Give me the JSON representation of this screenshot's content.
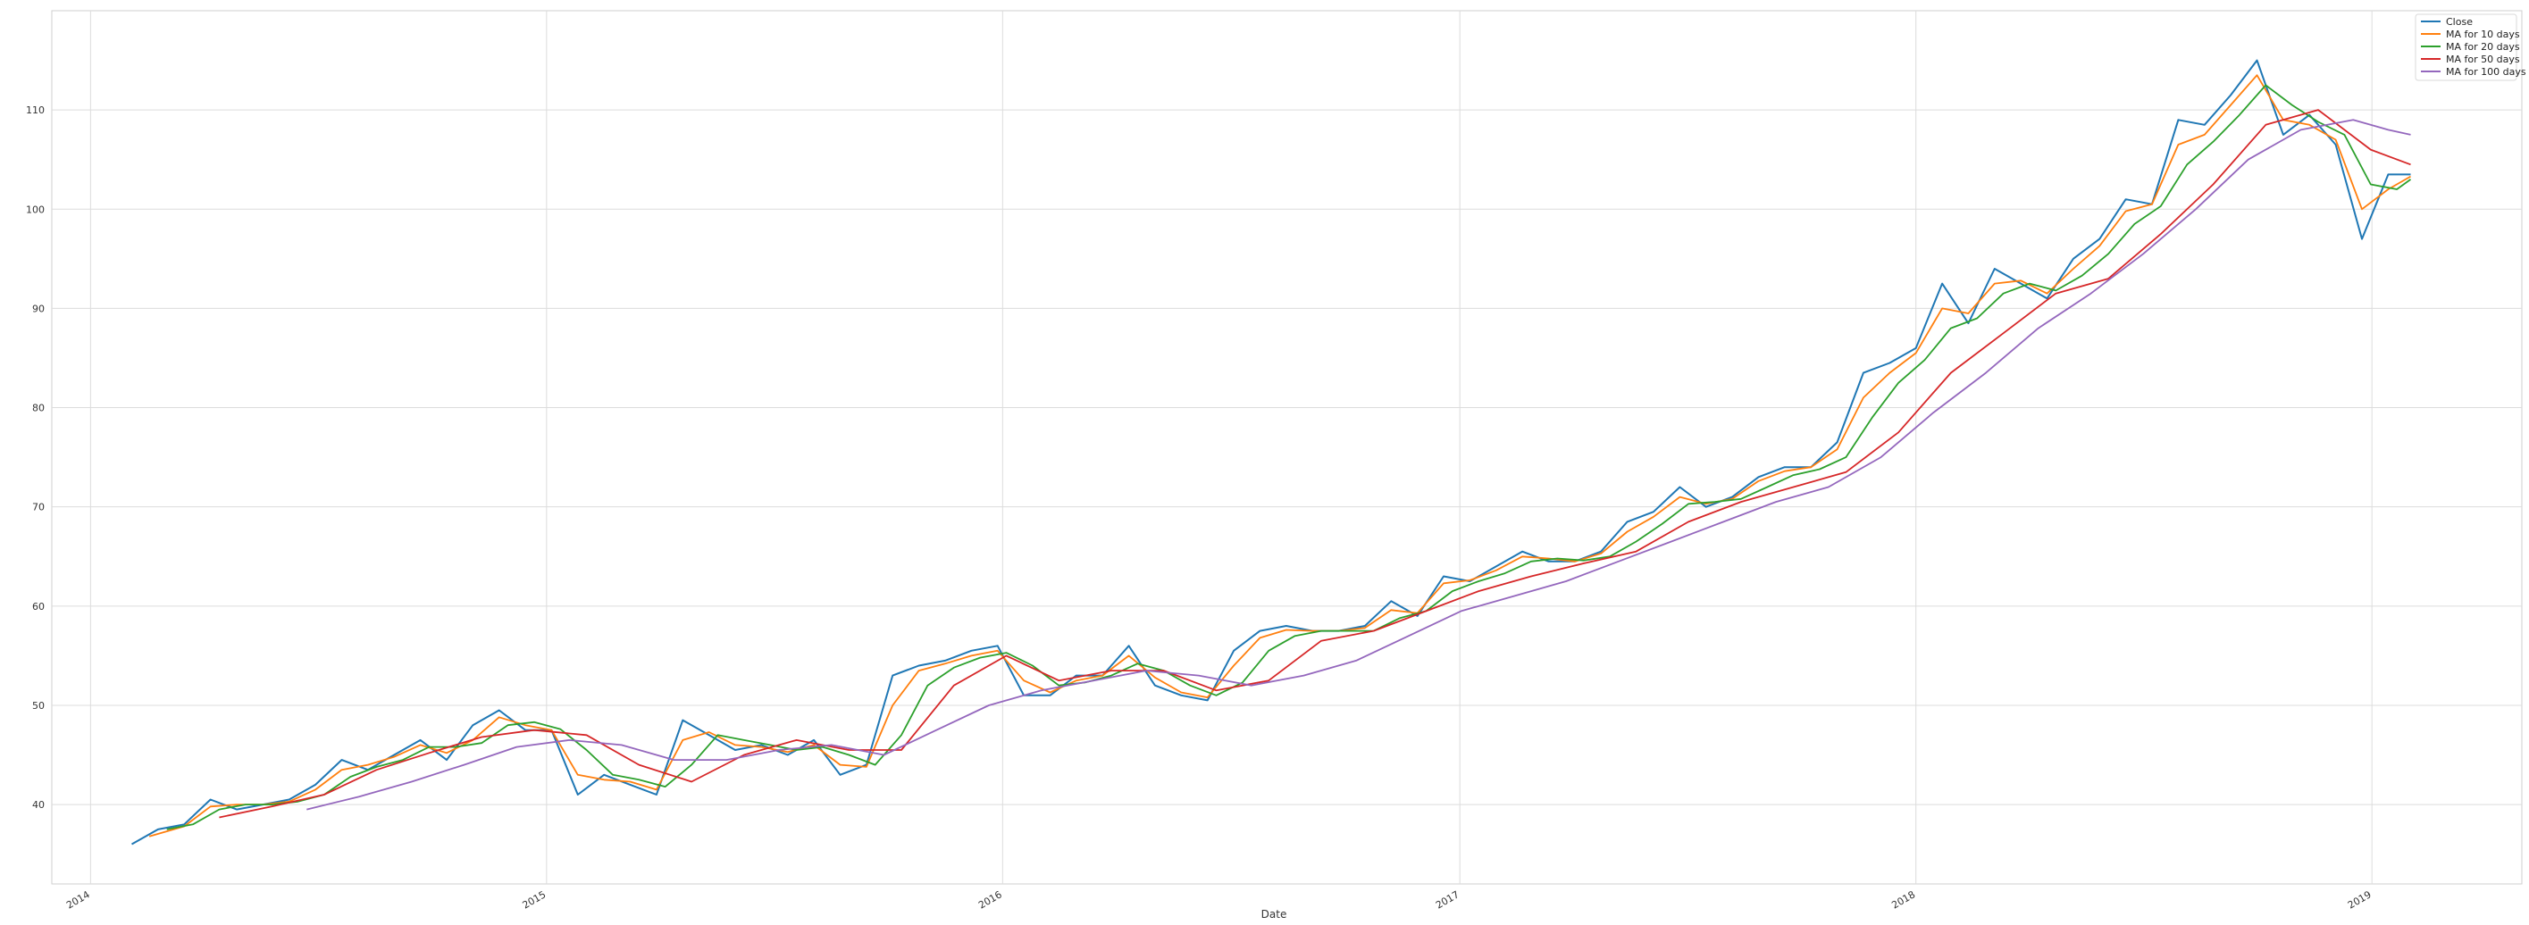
{
  "chart_data": {
    "type": "line",
    "title": "",
    "xlabel": "Date",
    "ylabel": "",
    "xlim": [
      "2013-12-01",
      "2019-05-01"
    ],
    "ylim": [
      32,
      120
    ],
    "grid": true,
    "legend_position": "top-right",
    "xticks": [
      {
        "date": "2014-01-01",
        "label": "2014"
      },
      {
        "date": "2015-01-01",
        "label": "2015"
      },
      {
        "date": "2016-01-01",
        "label": "2016"
      },
      {
        "date": "2017-01-01",
        "label": "2017"
      },
      {
        "date": "2018-01-01",
        "label": "2018"
      },
      {
        "date": "2019-01-01",
        "label": "2019"
      }
    ],
    "yticks": [
      40,
      50,
      60,
      70,
      80,
      90,
      100,
      110
    ],
    "series": [
      {
        "name": "Close",
        "color": "#1f77b4",
        "x": [
          "2014-02-03",
          "2014-02-24",
          "2014-03-17",
          "2014-04-07",
          "2014-04-28",
          "2014-05-19",
          "2014-06-09",
          "2014-06-30",
          "2014-07-21",
          "2014-08-11",
          "2014-09-01",
          "2014-09-22",
          "2014-10-13",
          "2014-11-03",
          "2014-11-24",
          "2014-12-15",
          "2015-01-05",
          "2015-01-26",
          "2015-02-16",
          "2015-03-09",
          "2015-03-30",
          "2015-04-20",
          "2015-05-11",
          "2015-06-01",
          "2015-06-22",
          "2015-07-13",
          "2015-08-03",
          "2015-08-24",
          "2015-09-14",
          "2015-10-05",
          "2015-10-26",
          "2015-11-16",
          "2015-12-07",
          "2015-12-28",
          "2016-01-18",
          "2016-02-08",
          "2016-02-29",
          "2016-03-21",
          "2016-04-11",
          "2016-05-02",
          "2016-05-23",
          "2016-06-13",
          "2016-07-04",
          "2016-07-25",
          "2016-08-15",
          "2016-09-05",
          "2016-09-26",
          "2016-10-17",
          "2016-11-07",
          "2016-11-28",
          "2016-12-19",
          "2017-01-09",
          "2017-01-30",
          "2017-02-20",
          "2017-03-13",
          "2017-04-03",
          "2017-04-24",
          "2017-05-15",
          "2017-06-05",
          "2017-06-26",
          "2017-07-17",
          "2017-08-07",
          "2017-08-28",
          "2017-09-18",
          "2017-10-09",
          "2017-10-30",
          "2017-11-20",
          "2017-12-11",
          "2018-01-01",
          "2018-01-22",
          "2018-02-12",
          "2018-03-05",
          "2018-03-26",
          "2018-04-16",
          "2018-05-07",
          "2018-05-28",
          "2018-06-18",
          "2018-07-09",
          "2018-07-30",
          "2018-08-20",
          "2018-09-10",
          "2018-10-01",
          "2018-10-22",
          "2018-11-12",
          "2018-12-03",
          "2018-12-24",
          "2019-01-14",
          "2019-02-01"
        ],
        "values": [
          36.0,
          37.5,
          38.0,
          40.5,
          39.5,
          40.0,
          40.5,
          42.0,
          44.5,
          43.5,
          45.0,
          46.5,
          44.5,
          48.0,
          49.5,
          47.5,
          47.5,
          41.0,
          43.0,
          42.0,
          41.0,
          48.5,
          47.0,
          45.5,
          46.0,
          45.0,
          46.5,
          43.0,
          44.0,
          53.0,
          54.0,
          54.5,
          55.5,
          56.0,
          51.0,
          51.0,
          53.0,
          53.0,
          56.0,
          52.0,
          51.0,
          50.5,
          55.5,
          57.5,
          58.0,
          57.5,
          57.5,
          58.0,
          60.5,
          59.0,
          63.0,
          62.5,
          64.0,
          65.5,
          64.5,
          64.5,
          65.5,
          68.5,
          69.5,
          72.0,
          70.0,
          71.0,
          73.0,
          74.0,
          74.0,
          76.5,
          83.5,
          84.5,
          86.0,
          92.5,
          88.5,
          94.0,
          92.5,
          91.0,
          95.0,
          97.0,
          101.0,
          100.5,
          109.0,
          108.5,
          111.5,
          115.0,
          107.5,
          109.5,
          106.5,
          97.0,
          103.5,
          103.5
        ]
      },
      {
        "name": "MA for 10 days",
        "color": "#ff7f0e",
        "x": [
          "2014-02-17",
          "2014-03-17",
          "2014-04-07",
          "2014-04-28",
          "2014-05-19",
          "2014-06-09",
          "2014-06-30",
          "2014-07-21",
          "2014-08-11",
          "2014-09-01",
          "2014-09-22",
          "2014-10-13",
          "2014-11-03",
          "2014-11-24",
          "2014-12-15",
          "2015-01-05",
          "2015-01-26",
          "2015-02-16",
          "2015-03-09",
          "2015-03-30",
          "2015-04-20",
          "2015-05-11",
          "2015-06-01",
          "2015-06-22",
          "2015-07-13",
          "2015-08-03",
          "2015-08-24",
          "2015-09-14",
          "2015-10-05",
          "2015-10-26",
          "2015-11-16",
          "2015-12-07",
          "2015-12-28",
          "2016-01-18",
          "2016-02-08",
          "2016-02-29",
          "2016-03-21",
          "2016-04-11",
          "2016-05-02",
          "2016-05-23",
          "2016-06-13",
          "2016-07-04",
          "2016-07-25",
          "2016-08-15",
          "2016-09-05",
          "2016-09-26",
          "2016-10-17",
          "2016-11-07",
          "2016-11-28",
          "2016-12-19",
          "2017-01-09",
          "2017-01-30",
          "2017-02-20",
          "2017-03-13",
          "2017-04-03",
          "2017-04-24",
          "2017-05-15",
          "2017-06-05",
          "2017-06-26",
          "2017-07-17",
          "2017-08-07",
          "2017-08-28",
          "2017-09-18",
          "2017-10-09",
          "2017-10-30",
          "2017-11-20",
          "2017-12-11",
          "2018-01-01",
          "2018-01-22",
          "2018-02-12",
          "2018-03-05",
          "2018-03-26",
          "2018-04-16",
          "2018-05-07",
          "2018-05-28",
          "2018-06-18",
          "2018-07-09",
          "2018-07-30",
          "2018-08-20",
          "2018-09-10",
          "2018-10-01",
          "2018-10-22",
          "2018-11-12",
          "2018-12-03",
          "2018-12-24",
          "2019-01-14",
          "2019-02-01"
        ],
        "values": [
          36.8,
          37.8,
          39.8,
          40.0,
          40.0,
          40.3,
          41.5,
          43.5,
          44.0,
          44.8,
          46.0,
          45.2,
          46.5,
          48.8,
          48.0,
          47.5,
          43.0,
          42.5,
          42.3,
          41.5,
          46.5,
          47.3,
          46.0,
          45.8,
          45.3,
          46.0,
          44.0,
          43.8,
          50.0,
          53.5,
          54.2,
          55.0,
          55.5,
          52.5,
          51.3,
          52.5,
          53.0,
          55.0,
          52.8,
          51.3,
          50.8,
          54.0,
          56.8,
          57.6,
          57.5,
          57.5,
          57.8,
          59.6,
          59.3,
          62.3,
          62.6,
          63.6,
          65.0,
          64.8,
          64.5,
          65.3,
          67.5,
          69.0,
          71.0,
          70.3,
          70.8,
          72.6,
          73.6,
          74.0,
          75.8,
          81.0,
          83.5,
          85.5,
          90.0,
          89.5,
          92.5,
          92.8,
          91.5,
          94.0,
          96.3,
          99.8,
          100.5,
          106.5,
          107.5,
          110.5,
          113.5,
          109.0,
          108.5,
          107.0,
          100.0,
          102.0,
          103.3
        ]
      },
      {
        "name": "MA for 20 days",
        "color": "#2ca02c",
        "x": [
          "2014-03-03",
          "2014-03-24",
          "2014-04-14",
          "2014-05-05",
          "2014-05-26",
          "2014-06-16",
          "2014-07-07",
          "2014-07-28",
          "2014-08-18",
          "2014-09-08",
          "2014-09-29",
          "2014-10-20",
          "2014-11-10",
          "2014-12-01",
          "2014-12-22",
          "2015-01-12",
          "2015-02-02",
          "2015-02-23",
          "2015-03-16",
          "2015-04-06",
          "2015-04-27",
          "2015-05-18",
          "2015-06-08",
          "2015-06-29",
          "2015-07-20",
          "2015-08-10",
          "2015-08-31",
          "2015-09-21",
          "2015-10-12",
          "2015-11-02",
          "2015-11-23",
          "2015-12-14",
          "2016-01-04",
          "2016-01-25",
          "2016-02-15",
          "2016-03-07",
          "2016-03-28",
          "2016-04-18",
          "2016-05-09",
          "2016-05-30",
          "2016-06-20",
          "2016-07-11",
          "2016-08-01",
          "2016-08-22",
          "2016-09-12",
          "2016-10-03",
          "2016-10-24",
          "2016-11-14",
          "2016-12-05",
          "2016-12-26",
          "2017-01-16",
          "2017-02-06",
          "2017-02-27",
          "2017-03-20",
          "2017-04-10",
          "2017-05-01",
          "2017-05-22",
          "2017-06-12",
          "2017-07-03",
          "2017-07-24",
          "2017-08-14",
          "2017-09-04",
          "2017-09-25",
          "2017-10-16",
          "2017-11-06",
          "2017-11-27",
          "2017-12-18",
          "2018-01-08",
          "2018-01-29",
          "2018-02-19",
          "2018-03-12",
          "2018-04-02",
          "2018-04-23",
          "2018-05-14",
          "2018-06-04",
          "2018-06-25",
          "2018-07-16",
          "2018-08-06",
          "2018-08-27",
          "2018-09-17",
          "2018-10-08",
          "2018-10-29",
          "2018-11-19",
          "2018-12-10",
          "2018-12-31",
          "2019-01-21",
          "2019-02-01"
        ],
        "values": [
          37.5,
          38.0,
          39.5,
          40.0,
          40.0,
          40.3,
          41.0,
          42.8,
          43.8,
          44.5,
          45.8,
          45.8,
          46.2,
          48.0,
          48.3,
          47.6,
          45.5,
          43.0,
          42.5,
          41.8,
          44.0,
          47.0,
          46.5,
          46.0,
          45.5,
          45.8,
          45.0,
          44.0,
          47.0,
          52.0,
          53.8,
          54.8,
          55.3,
          54.0,
          52.0,
          52.3,
          53.0,
          54.2,
          53.5,
          52.0,
          51.0,
          52.3,
          55.5,
          57.0,
          57.5,
          57.5,
          57.5,
          58.8,
          59.5,
          61.5,
          62.5,
          63.3,
          64.5,
          64.8,
          64.6,
          65.0,
          66.5,
          68.3,
          70.3,
          70.5,
          70.8,
          72.0,
          73.2,
          73.8,
          75.0,
          79.0,
          82.5,
          84.8,
          88.0,
          89.0,
          91.5,
          92.5,
          91.8,
          93.3,
          95.5,
          98.5,
          100.3,
          104.5,
          106.8,
          109.5,
          112.5,
          110.5,
          108.8,
          107.5,
          102.5,
          102.0,
          103.0
        ]
      },
      {
        "name": "MA for 50 days",
        "color": "#d62728",
        "x": [
          "2014-04-14",
          "2014-05-26",
          "2014-07-07",
          "2014-08-18",
          "2014-09-29",
          "2014-11-10",
          "2014-12-22",
          "2015-02-02",
          "2015-03-16",
          "2015-04-27",
          "2015-06-08",
          "2015-07-20",
          "2015-08-31",
          "2015-10-12",
          "2015-11-23",
          "2016-01-04",
          "2016-02-15",
          "2016-03-28",
          "2016-05-09",
          "2016-06-20",
          "2016-08-01",
          "2016-09-12",
          "2016-10-24",
          "2016-12-05",
          "2017-01-16",
          "2017-02-27",
          "2017-04-10",
          "2017-05-22",
          "2017-07-03",
          "2017-08-14",
          "2017-09-25",
          "2017-11-06",
          "2017-12-18",
          "2018-01-29",
          "2018-03-12",
          "2018-04-23",
          "2018-06-04",
          "2018-07-16",
          "2018-08-27",
          "2018-10-08",
          "2018-11-19",
          "2018-12-31",
          "2019-02-01"
        ],
        "values": [
          38.7,
          39.8,
          41.0,
          43.5,
          45.2,
          46.8,
          47.5,
          47.0,
          44.0,
          42.3,
          45.0,
          46.5,
          45.5,
          45.5,
          52.0,
          55.0,
          52.5,
          53.5,
          53.5,
          51.5,
          52.5,
          56.5,
          57.5,
          59.5,
          61.5,
          63.0,
          64.3,
          65.5,
          68.5,
          70.5,
          72.0,
          73.5,
          77.5,
          83.5,
          87.5,
          91.5,
          93.0,
          97.5,
          102.5,
          108.5,
          110.0,
          106.0,
          104.5
        ]
      },
      {
        "name": "MA for 100 days",
        "color": "#9467bd",
        "x": [
          "2014-06-23",
          "2014-08-04",
          "2014-09-15",
          "2014-10-27",
          "2014-12-08",
          "2015-01-19",
          "2015-03-02",
          "2015-04-13",
          "2015-05-25",
          "2015-07-06",
          "2015-08-17",
          "2015-09-28",
          "2015-11-09",
          "2015-12-21",
          "2016-02-01",
          "2016-03-14",
          "2016-04-25",
          "2016-06-06",
          "2016-07-18",
          "2016-08-29",
          "2016-10-10",
          "2016-11-21",
          "2017-01-02",
          "2017-02-13",
          "2017-03-27",
          "2017-05-08",
          "2017-06-19",
          "2017-07-31",
          "2017-09-11",
          "2017-10-23",
          "2017-12-04",
          "2018-01-15",
          "2018-02-26",
          "2018-04-09",
          "2018-05-21",
          "2018-07-02",
          "2018-08-13",
          "2018-09-24",
          "2018-11-05",
          "2018-12-17",
          "2019-01-14",
          "2019-02-01"
        ],
        "values": [
          39.5,
          40.8,
          42.3,
          44.0,
          45.8,
          46.5,
          46.0,
          44.5,
          44.5,
          45.5,
          46.0,
          45.0,
          47.5,
          50.0,
          51.5,
          52.5,
          53.5,
          53.0,
          52.0,
          53.0,
          54.5,
          57.0,
          59.5,
          61.0,
          62.5,
          64.5,
          66.5,
          68.5,
          70.5,
          72.0,
          75.0,
          79.5,
          83.5,
          88.0,
          91.5,
          95.5,
          100.0,
          105.0,
          108.0,
          109.0,
          108.0,
          107.5
        ]
      }
    ]
  }
}
